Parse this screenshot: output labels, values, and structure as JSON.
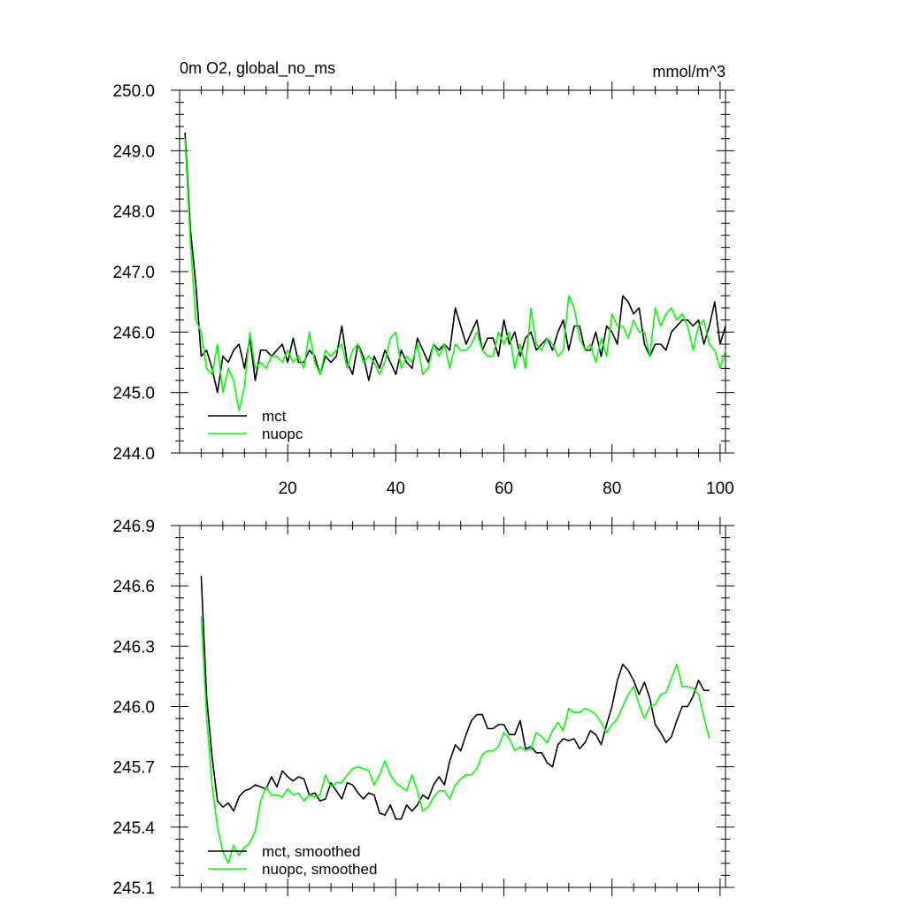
{
  "chart_data": [
    {
      "type": "line",
      "title": "0m O2, global_no_ms",
      "units": "mmol/m^3",
      "xlim": [
        0,
        101
      ],
      "ylim": [
        244.0,
        250.0
      ],
      "x_ticks": [
        20,
        40,
        60,
        80,
        100
      ],
      "y_ticks": [
        "244.0",
        "245.0",
        "246.0",
        "247.0",
        "248.0",
        "249.0",
        "250.0"
      ],
      "show_x_labels": true,
      "legend": "bottom-left",
      "series": [
        {
          "name": "mct",
          "color": "#000000",
          "x": [
            1,
            2,
            3,
            4,
            5,
            6,
            7,
            8,
            9,
            10,
            11,
            12,
            13,
            14,
            15,
            16,
            17,
            18,
            19,
            20,
            21,
            22,
            23,
            24,
            25,
            26,
            27,
            28,
            29,
            30,
            31,
            32,
            33,
            34,
            35,
            36,
            37,
            38,
            39,
            40,
            41,
            42,
            43,
            44,
            45,
            46,
            47,
            48,
            49,
            50,
            51,
            52,
            53,
            54,
            55,
            56,
            57,
            58,
            59,
            60,
            61,
            62,
            63,
            64,
            65,
            66,
            67,
            68,
            69,
            70,
            71,
            72,
            73,
            74,
            75,
            76,
            77,
            78,
            79,
            80,
            81,
            82,
            83,
            84,
            85,
            86,
            87,
            88,
            89,
            90,
            91,
            92,
            93,
            94,
            95,
            96,
            97,
            98,
            99,
            100,
            101
          ],
          "y": [
            249.3,
            247.7,
            246.8,
            245.6,
            245.7,
            245.4,
            245.0,
            245.6,
            245.5,
            245.7,
            245.8,
            245.4,
            245.9,
            245.2,
            245.7,
            245.7,
            245.6,
            245.7,
            245.8,
            245.5,
            245.9,
            245.5,
            245.5,
            245.7,
            245.6,
            245.3,
            245.6,
            245.5,
            245.6,
            246.1,
            245.5,
            245.3,
            245.8,
            245.6,
            245.2,
            245.6,
            245.4,
            245.7,
            245.5,
            245.3,
            245.7,
            245.5,
            245.4,
            245.9,
            245.7,
            245.5,
            245.8,
            245.7,
            245.8,
            245.7,
            246.4,
            246.1,
            245.8,
            246.0,
            246.2,
            245.7,
            245.9,
            245.9,
            245.6,
            246.2,
            245.8,
            246.0,
            245.6,
            245.9,
            246.0,
            245.7,
            245.8,
            245.9,
            245.7,
            246.0,
            246.2,
            245.7,
            246.1,
            246.1,
            245.7,
            245.7,
            246.0,
            245.6,
            246.1,
            246.0,
            245.8,
            246.6,
            246.5,
            246.3,
            246.4,
            245.8,
            245.6,
            245.8,
            245.8,
            245.7,
            246.0,
            246.1,
            246.2,
            246.2,
            246.1,
            246.2,
            245.8,
            246.1,
            246.5,
            245.8,
            246.1
          ]
        },
        {
          "name": "nuopc",
          "color": "#00ff00",
          "x": [
            1,
            2,
            3,
            4,
            5,
            6,
            7,
            8,
            9,
            10,
            11,
            12,
            13,
            14,
            15,
            16,
            17,
            18,
            19,
            20,
            21,
            22,
            23,
            24,
            25,
            26,
            27,
            28,
            29,
            30,
            31,
            32,
            33,
            34,
            35,
            36,
            37,
            38,
            39,
            40,
            41,
            42,
            43,
            44,
            45,
            46,
            47,
            48,
            49,
            50,
            51,
            52,
            53,
            54,
            55,
            56,
            57,
            58,
            59,
            60,
            61,
            62,
            63,
            64,
            65,
            66,
            67,
            68,
            69,
            70,
            71,
            72,
            73,
            74,
            75,
            76,
            77,
            78,
            79,
            80,
            81,
            82,
            83,
            84,
            85,
            86,
            87,
            88,
            89,
            90,
            91,
            92,
            93,
            94,
            95,
            96,
            97,
            98,
            99,
            100,
            101
          ],
          "y": [
            249.2,
            247.5,
            246.2,
            246.0,
            245.4,
            245.3,
            245.8,
            245.0,
            245.4,
            245.2,
            244.7,
            245.1,
            246.0,
            245.4,
            245.5,
            245.4,
            245.6,
            245.6,
            245.5,
            245.7,
            245.5,
            245.6,
            245.4,
            246.0,
            245.5,
            245.3,
            245.7,
            245.6,
            245.7,
            245.8,
            245.4,
            245.7,
            245.8,
            245.5,
            245.6,
            245.5,
            245.3,
            245.5,
            245.9,
            246.0,
            245.4,
            245.6,
            245.5,
            245.8,
            245.3,
            245.4,
            245.8,
            245.6,
            245.8,
            245.4,
            245.8,
            245.7,
            245.7,
            245.8,
            246.0,
            245.7,
            245.6,
            245.6,
            246.0,
            245.8,
            246.0,
            245.4,
            245.8,
            245.4,
            246.4,
            245.8,
            245.7,
            245.9,
            245.8,
            245.6,
            245.7,
            246.6,
            246.4,
            245.9,
            245.7,
            245.8,
            245.5,
            245.9,
            245.6,
            246.3,
            246.1,
            246.1,
            245.9,
            246.2,
            246.0,
            246.0,
            245.6,
            246.4,
            246.1,
            246.3,
            246.4,
            246.2,
            246.3,
            246.1,
            245.7,
            246.1,
            246.2,
            245.8,
            245.7,
            245.4,
            245.7
          ]
        }
      ]
    },
    {
      "type": "line",
      "title": "",
      "xlim": [
        0,
        101
      ],
      "ylim": [
        245.1,
        246.9
      ],
      "x_ticks": [
        20,
        40,
        60,
        80,
        100
      ],
      "y_ticks": [
        "245.1",
        "245.4",
        "245.7",
        "246.0",
        "246.3",
        "246.6",
        "246.9"
      ],
      "show_x_labels": false,
      "legend": "bottom-left",
      "series": [
        {
          "name": "mct, smoothed",
          "color": "#000000",
          "x": [
            4,
            5,
            6,
            7,
            8,
            9,
            10,
            11,
            12,
            13,
            14,
            15,
            16,
            17,
            18,
            19,
            20,
            21,
            22,
            23,
            24,
            25,
            26,
            27,
            28,
            29,
            30,
            31,
            32,
            33,
            34,
            35,
            36,
            37,
            38,
            39,
            40,
            41,
            42,
            43,
            44,
            45,
            46,
            47,
            48,
            49,
            50,
            51,
            52,
            53,
            54,
            55,
            56,
            57,
            58,
            59,
            60,
            61,
            62,
            63,
            64,
            65,
            66,
            67,
            68,
            69,
            70,
            71,
            72,
            73,
            74,
            75,
            76,
            77,
            78,
            79,
            80,
            81,
            82,
            83,
            84,
            85,
            86,
            87,
            88,
            89,
            90,
            91,
            92,
            93,
            94,
            95,
            96,
            97,
            98
          ],
          "y": [
            246.65,
            246.05,
            245.75,
            245.53,
            245.5,
            245.52,
            245.48,
            245.55,
            245.58,
            245.59,
            245.61,
            245.6,
            245.59,
            245.65,
            245.6,
            245.68,
            245.65,
            245.63,
            245.65,
            245.64,
            245.56,
            245.57,
            245.53,
            245.54,
            245.62,
            245.58,
            245.54,
            245.62,
            245.61,
            245.57,
            245.54,
            245.57,
            245.56,
            245.47,
            245.46,
            245.51,
            245.44,
            245.44,
            245.51,
            245.48,
            245.51,
            245.56,
            245.54,
            245.61,
            245.65,
            245.61,
            245.73,
            245.81,
            245.78,
            245.86,
            245.93,
            245.96,
            245.96,
            245.89,
            245.89,
            245.91,
            245.91,
            245.86,
            245.86,
            245.93,
            245.79,
            245.8,
            245.77,
            245.77,
            245.72,
            245.7,
            245.81,
            245.84,
            245.83,
            245.84,
            245.79,
            245.82,
            245.88,
            245.86,
            245.81,
            245.91,
            246.0,
            246.13,
            246.21,
            246.18,
            246.13,
            246.06,
            246.12,
            246.04,
            245.91,
            245.87,
            245.82,
            245.85,
            245.93,
            246.0,
            246.0,
            246.05,
            246.13,
            246.08,
            246.08
          ]
        },
        {
          "name": "nuopc, smoothed",
          "color": "#00ff00",
          "x": [
            4,
            5,
            6,
            7,
            8,
            9,
            10,
            11,
            12,
            13,
            14,
            15,
            16,
            17,
            18,
            19,
            20,
            21,
            22,
            23,
            24,
            25,
            26,
            27,
            28,
            29,
            30,
            31,
            32,
            33,
            34,
            35,
            36,
            37,
            38,
            39,
            40,
            41,
            42,
            43,
            44,
            45,
            46,
            47,
            48,
            49,
            50,
            51,
            52,
            53,
            54,
            55,
            56,
            57,
            58,
            59,
            60,
            61,
            62,
            63,
            64,
            65,
            66,
            67,
            68,
            69,
            70,
            71,
            72,
            73,
            74,
            75,
            76,
            77,
            78,
            79,
            80,
            81,
            82,
            83,
            84,
            85,
            86,
            87,
            88,
            89,
            90,
            91,
            92,
            93,
            94,
            95,
            96,
            97,
            98
          ],
          "y": [
            246.45,
            245.95,
            245.61,
            245.4,
            245.28,
            245.22,
            245.31,
            245.26,
            245.3,
            245.32,
            245.38,
            245.53,
            245.6,
            245.56,
            245.56,
            245.55,
            245.59,
            245.56,
            245.57,
            245.53,
            245.56,
            245.55,
            245.56,
            245.66,
            245.6,
            245.62,
            245.62,
            245.66,
            245.69,
            245.7,
            245.69,
            245.68,
            245.61,
            245.66,
            245.73,
            245.66,
            245.62,
            245.6,
            245.58,
            245.66,
            245.58,
            245.48,
            245.5,
            245.55,
            245.58,
            245.58,
            245.54,
            245.61,
            245.64,
            245.66,
            245.66,
            245.69,
            245.76,
            245.78,
            245.78,
            245.8,
            245.87,
            245.84,
            245.78,
            245.8,
            245.78,
            245.79,
            245.87,
            245.85,
            245.82,
            245.88,
            245.92,
            245.88,
            245.99,
            245.97,
            245.97,
            245.99,
            245.98,
            245.96,
            245.92,
            245.87,
            245.91,
            245.94,
            246.0,
            246.06,
            246.1,
            246.01,
            245.94,
            246.0,
            246.01,
            246.06,
            246.07,
            246.14,
            246.21,
            246.1,
            246.1,
            246.09,
            246.06,
            245.95,
            245.84
          ]
        }
      ]
    }
  ]
}
